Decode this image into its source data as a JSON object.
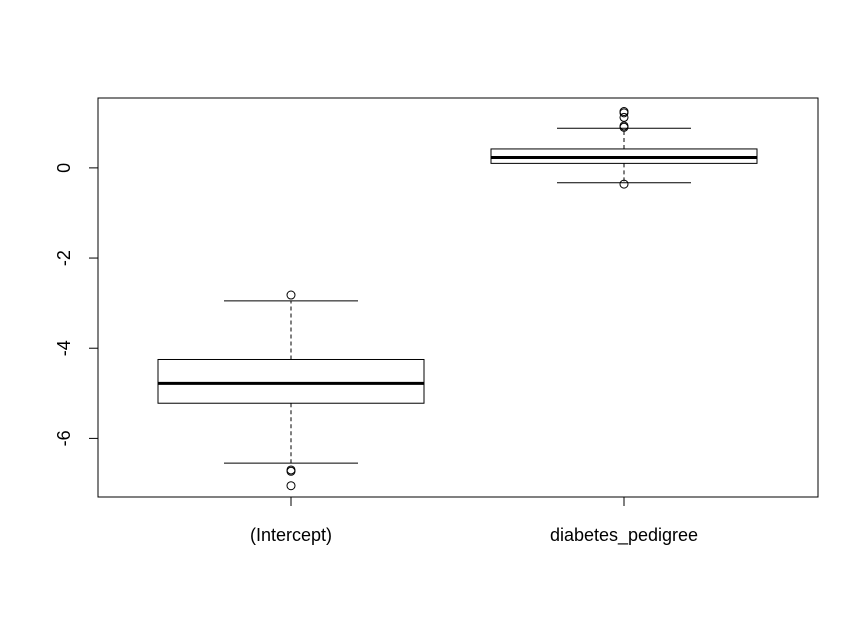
{
  "chart_data": {
    "type": "boxplot",
    "title": "",
    "xlabel": "",
    "ylabel": "",
    "ylim": [
      -7.3,
      1.55
    ],
    "yticks": [
      {
        "value": 0,
        "label": "0"
      },
      {
        "value": -2,
        "label": "-2"
      },
      {
        "value": -4,
        "label": "-4"
      },
      {
        "value": -6,
        "label": "-6"
      }
    ],
    "grid": false,
    "legend": "none",
    "colors": {
      "stroke": "#000000",
      "box_fill": "#ffffff",
      "background": "#ffffff"
    },
    "boxes": [
      {
        "label": "(Intercept)",
        "whisker_low": -6.55,
        "q1": -5.22,
        "median": -4.78,
        "q3": -4.25,
        "whisker_high": -2.95,
        "outliers": [
          -2.82,
          -6.7,
          -6.73,
          -7.05
        ]
      },
      {
        "label": "diabetes_pedigree",
        "whisker_low": -0.33,
        "q1": 0.1,
        "median": 0.23,
        "q3": 0.42,
        "whisker_high": 0.88,
        "outliers": [
          -0.36,
          0.9,
          0.93,
          1.12,
          1.22,
          1.25
        ]
      }
    ]
  }
}
